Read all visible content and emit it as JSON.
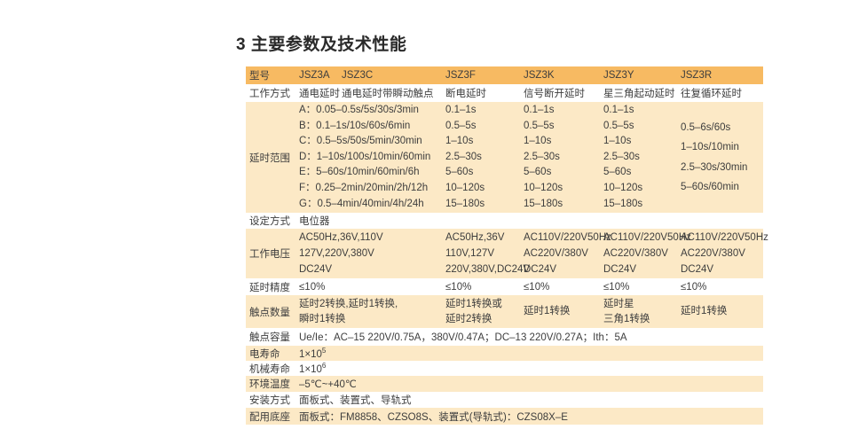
{
  "title": "3 主要参数及技术性能",
  "colors": {
    "header_bg": "#F7BA62",
    "stripe_bg": "#FCE9C6",
    "text": "#3D3D3D",
    "title": "#2A2A2A"
  },
  "header": {
    "label": "型号",
    "models": [
      "JSZ3A",
      "JSZ3C",
      "JSZ3F",
      "JSZ3K",
      "JSZ3Y",
      "JSZ3R"
    ]
  },
  "work_mode": {
    "label": "工作方式",
    "a": "通电延时",
    "c": "通电延时带瞬动触点",
    "f": "断电延时",
    "k": "信号断开延时",
    "y": "星三角起动延时",
    "r": "往复循环延时"
  },
  "delay_range": {
    "label": "延时范围",
    "ac": [
      "A：0.05–0.5s/5s/30s/3min",
      "B：0.1–1s/10s/60s/6min",
      "C：0.5–5s/50s/5min/30min",
      "D：1–10s/100s/10min/60min",
      "E：5–60s/10min/60min/6h",
      "F：0.25–2min/20min/2h/12h",
      "G：0.5–4min/40min/4h/24h"
    ],
    "f": [
      "0.1–1s",
      "0.5–5s",
      "1–10s",
      "2.5–30s",
      "5–60s",
      "10–120s",
      "15–180s"
    ],
    "k": [
      "0.1–1s",
      "0.5–5s",
      "1–10s",
      "2.5–30s",
      "5–60s",
      "10–120s",
      "15–180s"
    ],
    "y": [
      "0.1–1s",
      "0.5–5s",
      "1–10s",
      "2.5–30s",
      "5–60s",
      "10–120s",
      "15–180s"
    ],
    "r": [
      "0.5–6s/60s",
      "1–10s/10min",
      "2.5–30s/30min",
      "5–60s/60min"
    ]
  },
  "setting": {
    "label": "设定方式",
    "value": "电位器"
  },
  "voltage": {
    "label": "工作电压",
    "ac": [
      "AC50Hz,36V,110V",
      "127V,220V,380V",
      "DC24V"
    ],
    "f": [
      "AC50Hz,36V",
      "110V,127V",
      "220V,380V,DC24V"
    ],
    "k": [
      "AC110V/220V50Hz",
      "AC220V/380V",
      "DC24V"
    ],
    "y": [
      "AC110V/220V50Hz",
      "AC220V/380V",
      "DC24V"
    ],
    "r": [
      "AC110V/220V50Hz",
      "AC220V/380V",
      "DC24V"
    ]
  },
  "precision": {
    "label": "延时精度",
    "ac": "≤10%",
    "f": "≤10%",
    "k": "≤10%",
    "y": "≤10%",
    "r": "≤10%"
  },
  "contacts": {
    "label": "触点数量",
    "ac": [
      "延时2转换,延时1转换,",
      "瞬时1转换"
    ],
    "f": [
      "延时1转换或",
      "延时2转换"
    ],
    "k": [
      "延时1转换"
    ],
    "y": [
      "延时星",
      "三角1转换"
    ],
    "r": [
      "延时1转换"
    ]
  },
  "capacity": {
    "label": "触点容量",
    "value": "Ue/Ie：AC–15 220V/0.75A，380V/0.47A；DC–13 220V/0.27A；Ith：5A"
  },
  "elec_life": {
    "label": "电寿命",
    "base": "1×10",
    "exp": "5"
  },
  "mech_life": {
    "label": "机械寿命",
    "base": "1×10",
    "exp": "6"
  },
  "temp": {
    "label": "环境温度",
    "value": "–5℃~+40℃"
  },
  "mounting": {
    "label": "安装方式",
    "value": "面板式、装置式、导轨式"
  },
  "socket": {
    "label": "配用底座",
    "value": "面板式：FM8858、CZSO8S、装置式(导轨式)：CZS08X–E"
  }
}
